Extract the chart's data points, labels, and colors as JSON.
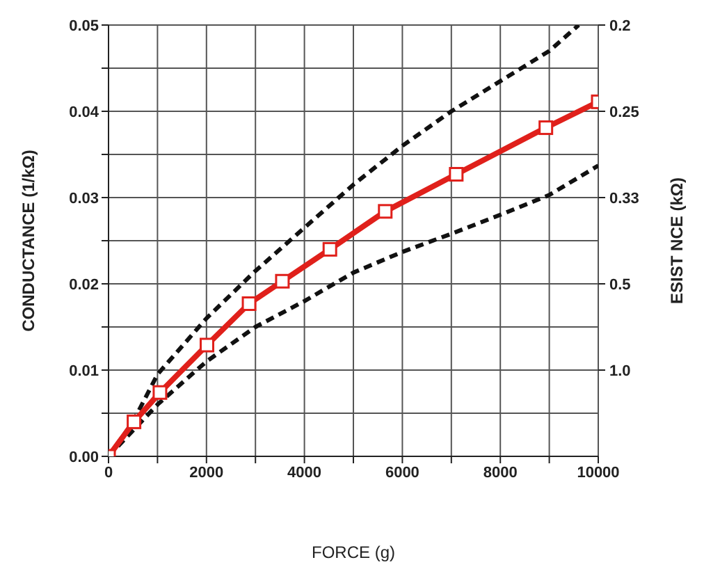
{
  "chart_data": {
    "type": "line",
    "xlabel": "FORCE (g)",
    "ylabel": "CONDUCTANCE (1/kΩ)",
    "y2label": "ESIST  NCE (kΩ)",
    "xlim": [
      0,
      10000
    ],
    "xticks": [
      0,
      {
        "value": 1000,
        "label": null
      },
      2000,
      {
        "value": 3000,
        "label": null
      },
      4000,
      {
        "value": 5000,
        "label": null
      },
      6000,
      {
        "value": 7000,
        "label": null
      },
      8000,
      {
        "value": 9000,
        "label": null
      },
      10000
    ],
    "ylim": [
      0,
      0.05
    ],
    "yticks": [
      {
        "value": 0,
        "label": "0.00"
      },
      {
        "value": 0.005,
        "label": null
      },
      {
        "value": 0.01,
        "label": "0.01"
      },
      {
        "value": 0.015,
        "label": null
      },
      {
        "value": 0.02,
        "label": "0.02"
      },
      {
        "value": 0.025,
        "label": null
      },
      {
        "value": 0.03,
        "label": "0.03"
      },
      {
        "value": 0.035,
        "label": null
      },
      {
        "value": 0.04,
        "label": "0.04"
      },
      {
        "value": 0.045,
        "label": null
      },
      {
        "value": 0.05,
        "label": "0.05"
      }
    ],
    "annotations": [
      "1.0",
      "0.5",
      "0.33",
      "0.25",
      "0.2"
    ],
    "grid": true,
    "legend": false,
    "series": [
      {
        "color": "#111111",
        "line_style": "dashed",
        "marker": "none",
        "x": [
          0,
          500,
          1000,
          2000,
          3000,
          4000,
          5000,
          6000,
          7000,
          8000,
          9000,
          9600
        ],
        "values": [
          0,
          0.004,
          0.0095,
          0.016,
          0.0215,
          0.0265,
          0.0315,
          0.036,
          0.04,
          0.0435,
          0.047,
          0.05
        ]
      },
      {
        "color": "#111111",
        "line_style": "dashed",
        "marker": "none",
        "x": [
          0,
          1000,
          2000,
          3000,
          4000,
          5000,
          6000,
          7000,
          8000,
          9000,
          10000
        ],
        "values": [
          0,
          0.006,
          0.011,
          0.015,
          0.018,
          0.0213,
          0.0237,
          0.0258,
          0.028,
          0.0303,
          0.0337
        ]
      },
      {
        "color": "#e0201b",
        "line_style": "solid",
        "marker": "square",
        "x": [
          0,
          520,
          1050,
          2010,
          2870,
          3550,
          4520,
          5650,
          7100,
          8930,
          10000
        ],
        "values": [
          0,
          0.004,
          0.0074,
          0.0129,
          0.0177,
          0.0203,
          0.024,
          0.0284,
          0.0327,
          0.0381,
          0.0411
        ]
      }
    ]
  }
}
